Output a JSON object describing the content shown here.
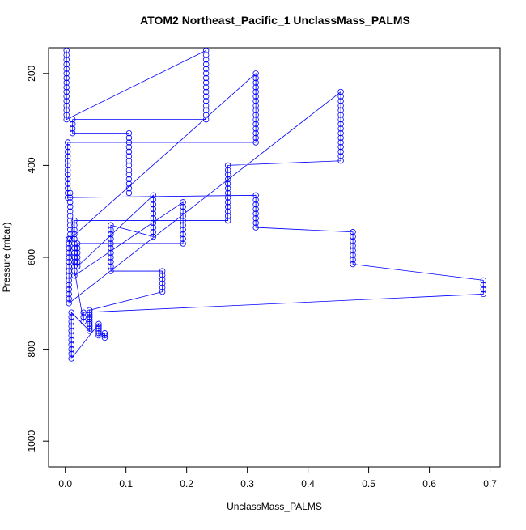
{
  "chart_data": {
    "type": "scatter",
    "title": "ATOM2 Northeast_Pacific_1 UnclassMass_PALMS",
    "xlabel": "UnclassMass_PALMS",
    "ylabel": "Pressure (mbar)",
    "color": "blue",
    "lines": true,
    "xlim": [
      -0.0276,
      0.7166
    ],
    "ylim": [
      1056,
      144
    ],
    "xticks": [
      {
        "value": 0,
        "label": "0.0"
      },
      0.1,
      0.2,
      0.3,
      0.4,
      0.5,
      0.6,
      0.7
    ],
    "yticks": [
      200,
      400,
      600,
      800,
      1000
    ],
    "x": [
      0.002,
      0.002,
      0.002,
      0.002,
      0.002,
      0.002,
      0.002,
      0.002,
      0.002,
      0.002,
      0.002,
      0.002,
      0.002,
      0.002,
      0.002,
      0.002,
      0.232,
      0.232,
      0.232,
      0.232,
      0.232,
      0.232,
      0.232,
      0.232,
      0.232,
      0.232,
      0.232,
      0.232,
      0.232,
      0.232,
      0.232,
      0.232,
      0.012,
      0.012,
      0.012,
      0.012,
      0.105,
      0.105,
      0.105,
      0.105,
      0.105,
      0.105,
      0.105,
      0.105,
      0.105,
      0.105,
      0.105,
      0.105,
      0.105,
      0.105,
      0.008,
      0.008,
      0.008,
      0.008,
      0.008,
      0.008,
      0.008,
      0.008,
      0.008,
      0.008,
      0.008,
      0.314,
      0.314,
      0.314,
      0.314,
      0.314,
      0.314,
      0.314,
      0.314,
      0.314,
      0.314,
      0.314,
      0.314,
      0.314,
      0.314,
      0.314,
      0.314,
      0.004,
      0.004,
      0.004,
      0.004,
      0.004,
      0.004,
      0.004,
      0.004,
      0.004,
      0.004,
      0.004,
      0.004,
      0.004,
      0.314,
      0.314,
      0.314,
      0.314,
      0.314,
      0.314,
      0.314,
      0.314,
      0.474,
      0.474,
      0.474,
      0.474,
      0.474,
      0.474,
      0.474,
      0.474,
      0.689,
      0.689,
      0.689,
      0.689,
      0.03,
      0.03,
      0.03,
      0.006,
      0.006,
      0.006,
      0.006,
      0.006,
      0.006,
      0.006,
      0.006,
      0.006,
      0.006,
      0.006,
      0.006,
      0.006,
      0.006,
      0.006,
      0.454,
      0.454,
      0.454,
      0.454,
      0.454,
      0.454,
      0.454,
      0.454,
      0.454,
      0.454,
      0.454,
      0.454,
      0.454,
      0.454,
      0.454,
      0.454,
      0.268,
      0.268,
      0.268,
      0.268,
      0.268,
      0.268,
      0.268,
      0.268,
      0.268,
      0.268,
      0.268,
      0.268,
      0.268,
      0.015,
      0.015,
      0.015,
      0.015,
      0.015,
      0.015,
      0.015,
      0.015,
      0.015,
      0.015,
      0.015,
      0.015,
      0.015,
      0.194,
      0.194,
      0.194,
      0.194,
      0.194,
      0.194,
      0.194,
      0.194,
      0.194,
      0.194,
      0.02,
      0.02,
      0.02,
      0.02,
      0.02,
      0.02,
      0.145,
      0.145,
      0.145,
      0.145,
      0.145,
      0.145,
      0.145,
      0.145,
      0.145,
      0.145,
      0.075,
      0.075,
      0.075,
      0.075,
      0.075,
      0.075,
      0.075,
      0.075,
      0.075,
      0.075,
      0.075,
      0.16,
      0.16,
      0.16,
      0.16,
      0.16,
      0.16,
      0.04,
      0.04,
      0.04,
      0.04,
      0.04,
      0.04,
      0.04,
      0.04,
      0.04,
      0.04,
      0.01,
      0.01,
      0.01,
      0.01,
      0.01,
      0.01,
      0.01,
      0.01,
      0.01,
      0.01,
      0.01,
      0.055,
      0.055,
      0.055,
      0.055,
      0.055,
      0.055,
      0.065,
      0.065,
      0.065
    ],
    "y": [
      150,
      160,
      170,
      180,
      190,
      200,
      210,
      220,
      230,
      240,
      250,
      260,
      270,
      280,
      290,
      300,
      150,
      160,
      170,
      180,
      190,
      200,
      210,
      220,
      230,
      240,
      250,
      260,
      270,
      280,
      290,
      300,
      300,
      310,
      320,
      330,
      330,
      340,
      350,
      360,
      370,
      380,
      390,
      400,
      410,
      420,
      430,
      440,
      450,
      460,
      460,
      470,
      480,
      490,
      500,
      510,
      520,
      530,
      540,
      550,
      560,
      200,
      210,
      220,
      230,
      240,
      250,
      260,
      270,
      280,
      290,
      300,
      310,
      320,
      330,
      340,
      350,
      350,
      360,
      370,
      380,
      390,
      400,
      410,
      420,
      430,
      440,
      450,
      460,
      470,
      465,
      475,
      485,
      495,
      505,
      515,
      525,
      535,
      545,
      555,
      565,
      575,
      585,
      595,
      605,
      615,
      650,
      660,
      670,
      680,
      720,
      730,
      740,
      560,
      570,
      580,
      590,
      600,
      610,
      620,
      630,
      640,
      650,
      660,
      670,
      680,
      690,
      700,
      240,
      250,
      260,
      270,
      280,
      290,
      300,
      310,
      320,
      330,
      340,
      350,
      360,
      370,
      380,
      390,
      400,
      410,
      420,
      430,
      440,
      450,
      460,
      470,
      480,
      490,
      500,
      510,
      520,
      520,
      530,
      540,
      550,
      560,
      570,
      580,
      590,
      600,
      610,
      620,
      630,
      640,
      480,
      490,
      500,
      510,
      520,
      530,
      540,
      550,
      560,
      570,
      570,
      580,
      590,
      600,
      610,
      620,
      465,
      475,
      485,
      495,
      505,
      515,
      525,
      535,
      545,
      555,
      530,
      540,
      550,
      560,
      570,
      580,
      590,
      600,
      610,
      620,
      630,
      630,
      639,
      648,
      657,
      666,
      675,
      715,
      720,
      725,
      730,
      735,
      740,
      745,
      750,
      755,
      760,
      720,
      730,
      740,
      750,
      760,
      770,
      780,
      790,
      800,
      810,
      820,
      745,
      750,
      755,
      760,
      765,
      770,
      765,
      770,
      775
    ]
  }
}
